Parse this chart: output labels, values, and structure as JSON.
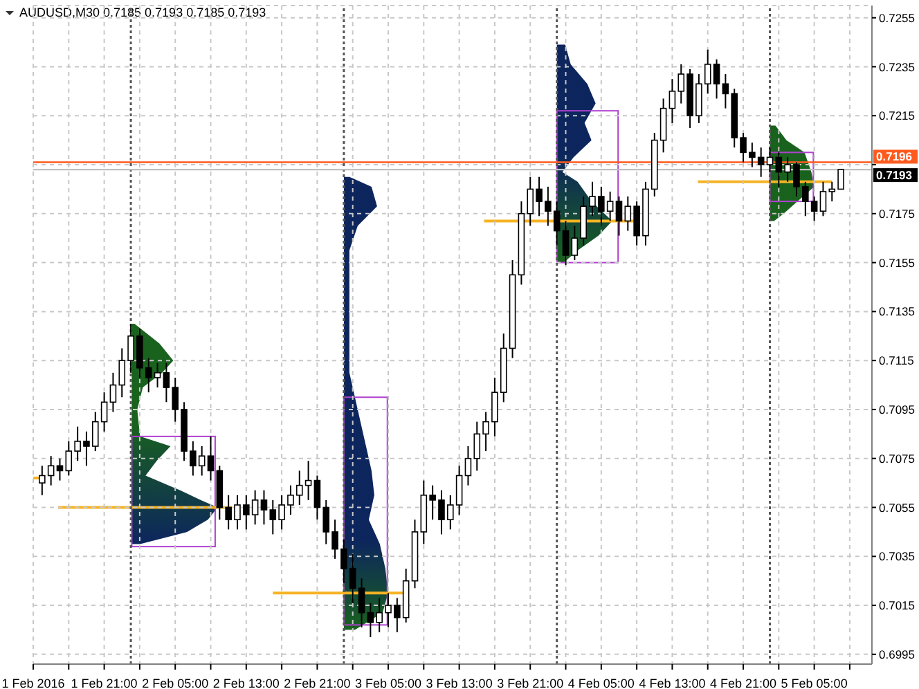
{
  "chart_data": {
    "type": "candlestick",
    "title": "AUDUSD,M30  0.7185 0.7193 0.7185 0.7193",
    "x": [
      "2016-02-01T14:00",
      "2016-02-01T15:00",
      "2016-02-01T16:00",
      "2016-02-01T17:00",
      "2016-02-01T18:00",
      "2016-02-01T19:00",
      "2016-02-01T20:00",
      "2016-02-01T21:00",
      "2016-02-01T22:00",
      "2016-02-01T23:00",
      "2016-02-02T00:00",
      "2016-02-02T01:00",
      "2016-02-02T02:00",
      "2016-02-02T03:00",
      "2016-02-02T04:00",
      "2016-02-02T05:00",
      "2016-02-02T06:00",
      "2016-02-02T07:00",
      "2016-02-02T08:00",
      "2016-02-02T09:00",
      "2016-02-02T10:00",
      "2016-02-02T11:00",
      "2016-02-02T12:00",
      "2016-02-02T13:00",
      "2016-02-02T14:00",
      "2016-02-02T15:00",
      "2016-02-02T16:00",
      "2016-02-02T17:00",
      "2016-02-02T18:00",
      "2016-02-02T19:00",
      "2016-02-02T20:00",
      "2016-02-02T21:00",
      "2016-02-02T22:00",
      "2016-02-02T23:00",
      "2016-02-03T00:00",
      "2016-02-03T01:00",
      "2016-02-03T02:00",
      "2016-02-03T03:00",
      "2016-02-03T04:00",
      "2016-02-03T05:00",
      "2016-02-03T06:00",
      "2016-02-03T07:00",
      "2016-02-03T08:00",
      "2016-02-03T09:00",
      "2016-02-03T10:00",
      "2016-02-03T11:00",
      "2016-02-03T12:00",
      "2016-02-03T13:00",
      "2016-02-03T14:00",
      "2016-02-03T15:00",
      "2016-02-03T16:00",
      "2016-02-03T17:00",
      "2016-02-03T18:00",
      "2016-02-03T19:00",
      "2016-02-03T20:00",
      "2016-02-03T21:00",
      "2016-02-03T22:00",
      "2016-02-03T23:00",
      "2016-02-04T00:00",
      "2016-02-04T01:00",
      "2016-02-04T02:00",
      "2016-02-04T03:00",
      "2016-02-04T04:00",
      "2016-02-04T05:00",
      "2016-02-04T06:00",
      "2016-02-04T07:00",
      "2016-02-04T08:00",
      "2016-02-04T09:00",
      "2016-02-04T10:00",
      "2016-02-04T11:00",
      "2016-02-04T12:00",
      "2016-02-04T13:00",
      "2016-02-04T14:00",
      "2016-02-04T15:00",
      "2016-02-04T16:00",
      "2016-02-04T17:00",
      "2016-02-04T18:00",
      "2016-02-04T19:00",
      "2016-02-04T20:00",
      "2016-02-04T21:00",
      "2016-02-04T22:00",
      "2016-02-04T23:00",
      "2016-02-05T00:00",
      "2016-02-05T01:00",
      "2016-02-05T02:00",
      "2016-02-05T03:00",
      "2016-02-05T04:00",
      "2016-02-05T05:00",
      "2016-02-05T06:00",
      "2016-02-05T07:00",
      "2016-02-05T08:00"
    ],
    "color": "#000000",
    "ohlc": [
      [
        0.7065,
        0.7072,
        0.706,
        0.7068
      ],
      [
        0.7068,
        0.7076,
        0.7064,
        0.7072
      ],
      [
        0.7072,
        0.7075,
        0.7066,
        0.707
      ],
      [
        0.707,
        0.7082,
        0.7068,
        0.7078
      ],
      [
        0.7078,
        0.7088,
        0.7074,
        0.7082
      ],
      [
        0.7082,
        0.7086,
        0.7072,
        0.708
      ],
      [
        0.708,
        0.7094,
        0.7078,
        0.709
      ],
      [
        0.709,
        0.7102,
        0.7086,
        0.7098
      ],
      [
        0.7098,
        0.711,
        0.7094,
        0.7105
      ],
      [
        0.7105,
        0.712,
        0.71,
        0.7115
      ],
      [
        0.7115,
        0.713,
        0.711,
        0.7125
      ],
      [
        0.7125,
        0.7128,
        0.7108,
        0.7112
      ],
      [
        0.7112,
        0.7116,
        0.7102,
        0.7108
      ],
      [
        0.7108,
        0.7114,
        0.7104,
        0.711
      ],
      [
        0.711,
        0.7114,
        0.7098,
        0.7104
      ],
      [
        0.7104,
        0.7108,
        0.709,
        0.7095
      ],
      [
        0.7095,
        0.7098,
        0.7074,
        0.7078
      ],
      [
        0.7078,
        0.7082,
        0.7068,
        0.7072
      ],
      [
        0.7072,
        0.708,
        0.7068,
        0.7076
      ],
      [
        0.7076,
        0.7084,
        0.7066,
        0.707
      ],
      [
        0.707,
        0.7072,
        0.705,
        0.7055
      ],
      [
        0.7055,
        0.706,
        0.7046,
        0.705
      ],
      [
        0.705,
        0.706,
        0.7046,
        0.7056
      ],
      [
        0.7056,
        0.706,
        0.7046,
        0.7052
      ],
      [
        0.7052,
        0.7062,
        0.7048,
        0.7058
      ],
      [
        0.7058,
        0.7062,
        0.7048,
        0.7054
      ],
      [
        0.7054,
        0.7058,
        0.7044,
        0.705
      ],
      [
        0.705,
        0.706,
        0.7046,
        0.7056
      ],
      [
        0.7056,
        0.7064,
        0.7052,
        0.706
      ],
      [
        0.706,
        0.707,
        0.7056,
        0.7064
      ],
      [
        0.7064,
        0.7074,
        0.7058,
        0.7066
      ],
      [
        0.7066,
        0.7068,
        0.705,
        0.7055
      ],
      [
        0.7055,
        0.7058,
        0.704,
        0.7045
      ],
      [
        0.7045,
        0.705,
        0.7034,
        0.7038
      ],
      [
        0.7038,
        0.7042,
        0.7024,
        0.703
      ],
      [
        0.703,
        0.7036,
        0.7016,
        0.7022
      ],
      [
        0.7022,
        0.7026,
        0.7006,
        0.7012
      ],
      [
        0.7012,
        0.7016,
        0.7002,
        0.7008
      ],
      [
        0.7008,
        0.7018,
        0.7004,
        0.7012
      ],
      [
        0.7012,
        0.702,
        0.7006,
        0.7015
      ],
      [
        0.7015,
        0.7018,
        0.7004,
        0.701
      ],
      [
        0.701,
        0.703,
        0.7008,
        0.7025
      ],
      [
        0.7025,
        0.705,
        0.7022,
        0.7045
      ],
      [
        0.7045,
        0.7066,
        0.704,
        0.706
      ],
      [
        0.706,
        0.7064,
        0.705,
        0.7058
      ],
      [
        0.7058,
        0.7062,
        0.7044,
        0.705
      ],
      [
        0.705,
        0.706,
        0.7046,
        0.7056
      ],
      [
        0.7056,
        0.7072,
        0.7052,
        0.7068
      ],
      [
        0.7068,
        0.708,
        0.7064,
        0.7075
      ],
      [
        0.7075,
        0.709,
        0.707,
        0.7085
      ],
      [
        0.7085,
        0.7094,
        0.7078,
        0.709
      ],
      [
        0.709,
        0.7108,
        0.7084,
        0.7102
      ],
      [
        0.7102,
        0.7126,
        0.7098,
        0.712
      ],
      [
        0.712,
        0.7156,
        0.7116,
        0.715
      ],
      [
        0.715,
        0.718,
        0.7146,
        0.7175
      ],
      [
        0.7175,
        0.719,
        0.717,
        0.7185
      ],
      [
        0.7185,
        0.719,
        0.7174,
        0.718
      ],
      [
        0.718,
        0.7186,
        0.717,
        0.7176
      ],
      [
        0.7176,
        0.718,
        0.7162,
        0.7168
      ],
      [
        0.7168,
        0.7172,
        0.7154,
        0.7158
      ],
      [
        0.7158,
        0.717,
        0.7156,
        0.7165
      ],
      [
        0.7165,
        0.7182,
        0.7162,
        0.7178
      ],
      [
        0.7178,
        0.7188,
        0.7174,
        0.7182
      ],
      [
        0.7182,
        0.7186,
        0.717,
        0.7176
      ],
      [
        0.7176,
        0.7184,
        0.7172,
        0.718
      ],
      [
        0.718,
        0.7182,
        0.7166,
        0.7172
      ],
      [
        0.7172,
        0.7182,
        0.7168,
        0.7178
      ],
      [
        0.7178,
        0.718,
        0.7162,
        0.7166
      ],
      [
        0.7166,
        0.7188,
        0.7162,
        0.7185
      ],
      [
        0.7185,
        0.7208,
        0.7182,
        0.7205
      ],
      [
        0.7205,
        0.7222,
        0.72,
        0.7218
      ],
      [
        0.7218,
        0.723,
        0.7212,
        0.7225
      ],
      [
        0.7225,
        0.7236,
        0.722,
        0.7232
      ],
      [
        0.7232,
        0.7234,
        0.721,
        0.7215
      ],
      [
        0.7215,
        0.7232,
        0.7212,
        0.7228
      ],
      [
        0.7228,
        0.7242,
        0.7224,
        0.7236
      ],
      [
        0.7236,
        0.7238,
        0.7222,
        0.7228
      ],
      [
        0.7228,
        0.7232,
        0.7218,
        0.7224
      ],
      [
        0.7224,
        0.7226,
        0.7202,
        0.7206
      ],
      [
        0.7206,
        0.7208,
        0.7196,
        0.72
      ],
      [
        0.72,
        0.7204,
        0.7194,
        0.7198
      ],
      [
        0.7198,
        0.7202,
        0.719,
        0.7195
      ],
      [
        0.7195,
        0.7202,
        0.7192,
        0.7198
      ],
      [
        0.7198,
        0.72,
        0.7186,
        0.7192
      ],
      [
        0.7192,
        0.7198,
        0.7188,
        0.7195
      ],
      [
        0.7195,
        0.7196,
        0.7182,
        0.7186
      ],
      [
        0.7186,
        0.7188,
        0.7174,
        0.718
      ],
      [
        0.718,
        0.7182,
        0.7172,
        0.7176
      ],
      [
        0.7176,
        0.7188,
        0.7174,
        0.7184
      ],
      [
        0.7184,
        0.7188,
        0.718,
        0.7185
      ],
      [
        0.7185,
        0.7193,
        0.7185,
        0.7193
      ]
    ],
    "xlim": [
      "2016-02-01T13:00",
      "2016-02-05T11:30"
    ],
    "xticks": [
      {
        "value": "2016-02-01T13:00",
        "label": "1 Feb 2016"
      },
      {
        "value": "2016-02-01T17:00",
        "label": null
      },
      {
        "value": "2016-02-01T21:00",
        "label": "1 Feb 21:00"
      },
      {
        "value": "2016-02-02T01:00",
        "label": null
      },
      {
        "value": "2016-02-02T05:00",
        "label": "2 Feb 05:00"
      },
      {
        "value": "2016-02-02T09:00",
        "label": null
      },
      {
        "value": "2016-02-02T13:00",
        "label": "2 Feb 13:00"
      },
      {
        "value": "2016-02-02T17:00",
        "label": null
      },
      {
        "value": "2016-02-02T21:00",
        "label": "2 Feb 21:00"
      },
      {
        "value": "2016-02-03T01:00",
        "label": null
      },
      {
        "value": "2016-02-03T05:00",
        "label": "3 Feb 05:00"
      },
      {
        "value": "2016-02-03T09:00",
        "label": null
      },
      {
        "value": "2016-02-03T13:00",
        "label": "3 Feb 13:00"
      },
      {
        "value": "2016-02-03T17:00",
        "label": null
      },
      {
        "value": "2016-02-03T21:00",
        "label": "3 Feb 21:00"
      },
      {
        "value": "2016-02-04T01:00",
        "label": null
      },
      {
        "value": "2016-02-04T05:00",
        "label": "4 Feb 05:00"
      },
      {
        "value": "2016-02-04T09:00",
        "label": null
      },
      {
        "value": "2016-02-04T13:00",
        "label": "4 Feb 13:00"
      },
      {
        "value": "2016-02-04T17:00",
        "label": null
      },
      {
        "value": "2016-02-04T21:00",
        "label": "4 Feb 21:00"
      },
      {
        "value": "2016-02-05T01:00",
        "label": null
      },
      {
        "value": "2016-02-05T05:00",
        "label": "5 Feb 05:00"
      },
      {
        "value": "2016-02-05T09:00",
        "label": null
      }
    ],
    "ylim": [
      0.6991,
      0.726
    ],
    "yticks": [
      0.6995,
      0.7015,
      0.7035,
      0.7055,
      0.7075,
      0.7095,
      0.7115,
      0.7135,
      0.7155,
      0.7175,
      {
        "value": 0.7195,
        "label": null
      },
      0.7215,
      0.7235,
      0.7255
    ],
    "grid": true,
    "ref_lines": [
      {
        "axis": "x",
        "value": "2016-02-02T00:00",
        "label": null,
        "color": "#555555",
        "line_style": "dotted"
      },
      {
        "axis": "x",
        "value": "2016-02-03T00:00",
        "label": null,
        "color": "#555555",
        "line_style": "dotted"
      },
      {
        "axis": "x",
        "value": "2016-02-04T00:00",
        "label": null,
        "color": "#555555",
        "line_style": "dotted"
      },
      {
        "axis": "x",
        "value": "2016-02-05T00:00",
        "label": null,
        "color": "#555555",
        "line_style": "dotted"
      },
      {
        "axis": "y",
        "value": 0.7196,
        "label": "0.7196",
        "color": "#ff5a1e",
        "line_style": "solid"
      },
      {
        "axis": "y",
        "value": 0.7193,
        "label": "0.7193",
        "color": "#c0c0c0",
        "line_style": "solid"
      }
    ]
  }
}
